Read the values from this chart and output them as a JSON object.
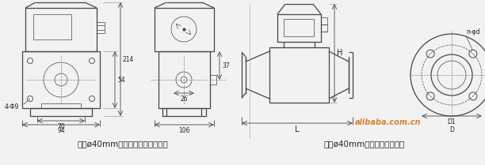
{
  "bg_color": "#f2f2f2",
  "line_color": "#444444",
  "dim_color": "#444444",
  "text_color": "#222222",
  "caption_left": "通径ø40mm以下直接安装在管线上",
  "caption_right": "通径ø40mm以上采用夫三连接",
  "watermark": "alibaba.com.cn",
  "lw_main": 0.9,
  "lw_thin": 0.5,
  "lw_dim": 0.6,
  "font_size_caption": 7.5,
  "font_size_dim": 5.5
}
